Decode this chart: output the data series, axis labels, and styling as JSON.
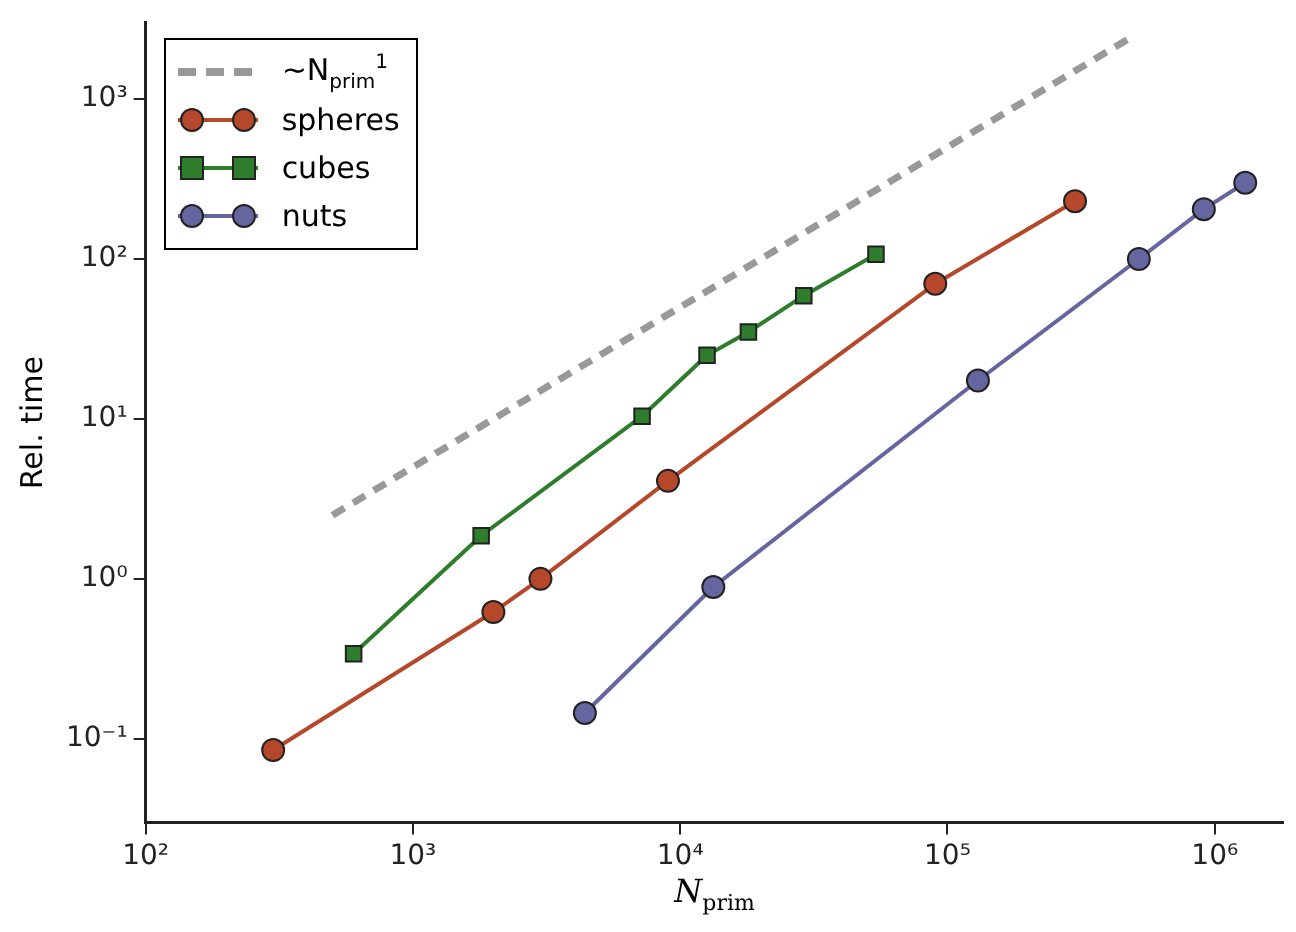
{
  "chart_data": {
    "type": "line",
    "xlabel": "N$_{prim}$",
    "ylabel": "Rel. time",
    "log": "xy",
    "grid": false,
    "legend": "top left",
    "xlim": [
      100,
      1800000
    ],
    "ylim": [
      0.03,
      3000
    ],
    "xticks": [
      {
        "value": 100,
        "label": "10²"
      },
      {
        "value": 1000,
        "label": "10³"
      },
      {
        "value": 10000,
        "label": "10⁴"
      },
      {
        "value": 100000,
        "label": "10⁵"
      },
      {
        "value": 1000000,
        "label": "10⁶"
      }
    ],
    "yticks": [
      {
        "value": 0.1,
        "label": "10⁻¹"
      },
      {
        "value": 1,
        "label": "10⁰"
      },
      {
        "value": 10,
        "label": "10¹"
      },
      {
        "value": 100,
        "label": "10²"
      },
      {
        "value": 1000,
        "label": "10³"
      }
    ],
    "series": [
      {
        "name": "∼N$_{prim}$$^{1}$",
        "color": "#999999",
        "line_style": "dashed",
        "marker": "none",
        "x": [
          500,
          500000
        ],
        "values": [
          2.5,
          2500
        ]
      },
      {
        "name": "spheres",
        "color": "#b5472b",
        "marker": "circle",
        "x": [
          300,
          2000,
          3000,
          9000,
          90000,
          300000
        ],
        "values": [
          0.085,
          0.62,
          1.0,
          4.1,
          70,
          230
        ]
      },
      {
        "name": "cubes",
        "color": "#2d7d2d",
        "marker": "square",
        "x": [
          600,
          1800,
          7200,
          12600,
          18000,
          29000,
          54000
        ],
        "values": [
          0.34,
          1.86,
          10.4,
          25,
          35,
          59,
          107
        ]
      },
      {
        "name": "nuts",
        "color": "#6565a0",
        "marker": "circle",
        "x": [
          4400,
          13300,
          130000,
          520000,
          910000,
          1300000
        ],
        "values": [
          0.145,
          0.89,
          17.4,
          100,
          205,
          300
        ]
      }
    ]
  }
}
